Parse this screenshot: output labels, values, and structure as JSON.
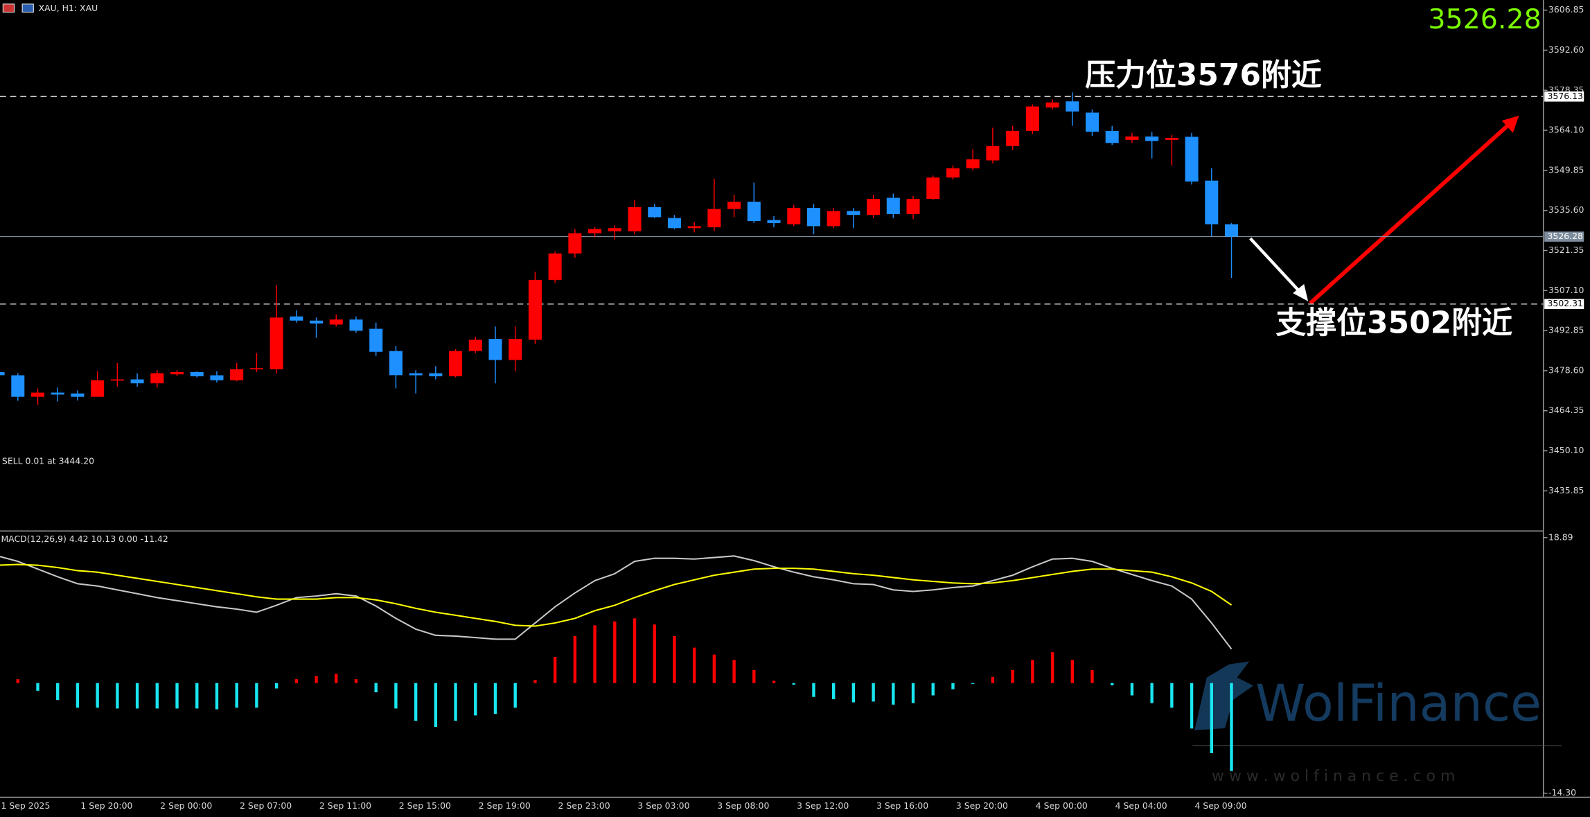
{
  "chart_data": [
    {
      "type": "candlestick",
      "title": "XAU, H1:  XAU",
      "categories": [
        "1 Sep 2025",
        null,
        null,
        null,
        "1 Sep 20:00",
        null,
        null,
        null,
        "2 Sep 00:00",
        null,
        null,
        null,
        "2 Sep 07:00",
        null,
        null,
        null,
        "2 Sep 11:00",
        null,
        null,
        null,
        "2 Sep 15:00",
        null,
        null,
        null,
        "2 Sep 19:00",
        null,
        null,
        null,
        "2 Sep 23:00",
        null,
        null,
        null,
        "3 Sep 03:00",
        null,
        null,
        null,
        "3 Sep 08:00",
        null,
        null,
        null,
        "3 Sep 12:00",
        null,
        null,
        null,
        "3 Sep 16:00",
        null,
        null,
        null,
        "3 Sep 20:00",
        null,
        null,
        null,
        "4 Sep 00:00",
        null,
        null,
        null,
        "4 Sep 04:00",
        null,
        null,
        null,
        "4 Sep 09:00",
        null,
        null
      ],
      "open": [
        3478.1,
        3476.96,
        3469.3,
        3470.8,
        3470.5,
        3469.3,
        3475.2,
        3475.5,
        3474.1,
        3477.3,
        3478.1,
        3476.96,
        3475.2,
        3479.1,
        3479.1,
        3497.9,
        3496.4,
        3495.0,
        3496.8,
        3493.5,
        3485.6,
        3477.7,
        3477.7,
        3476.6,
        3485.6,
        3489.9,
        3482.4,
        3489.6,
        3510.9,
        3520.3,
        3527.5,
        3528.2,
        3528.2,
        3536.8,
        3532.9,
        3529.3,
        3529.6,
        3536.1,
        3538.7,
        3532.2,
        3530.7,
        3536.5,
        3530.0,
        3535.4,
        3534.0,
        3540.1,
        3534.3,
        3539.7,
        3547.3,
        3550.6,
        3553.4,
        3558.5,
        3563.9,
        3572.2,
        3574.4,
        3570.4,
        3563.9,
        3560.7,
        3561.9,
        3560.7,
        3561.8,
        3546.2,
        3530.7
      ],
      "high": [
        3478.8,
        3477.7,
        3472.3,
        3472.6,
        3471.6,
        3478.4,
        3481.3,
        3477.7,
        3478.8,
        3478.8,
        3478.4,
        3478.4,
        3481.3,
        3484.9,
        3509.1,
        3500.1,
        3497.5,
        3498.6,
        3497.9,
        3495.7,
        3487.4,
        3478.8,
        3480.2,
        3486.3,
        3490.7,
        3494.3,
        3494.3,
        3513.8,
        3521.0,
        3529.0,
        3529.6,
        3530.4,
        3539.4,
        3537.9,
        3534.0,
        3531.4,
        3546.9,
        3541.2,
        3545.5,
        3533.6,
        3537.6,
        3537.9,
        3536.5,
        3536.5,
        3541.2,
        3541.6,
        3540.8,
        3548.0,
        3551.6,
        3557.4,
        3565.0,
        3565.7,
        3573.3,
        3575.1,
        3577.6,
        3571.5,
        3565.7,
        3563.2,
        3563.6,
        3562.5,
        3563.2,
        3550.6,
        3531.1
      ],
      "low": [
        3476.2,
        3467.9,
        3466.5,
        3467.6,
        3468.0,
        3469.3,
        3472.9,
        3472.9,
        3472.6,
        3476.6,
        3476.2,
        3474.4,
        3474.8,
        3478.1,
        3477.7,
        3495.7,
        3490.3,
        3494.3,
        3492.1,
        3483.8,
        3472.3,
        3470.5,
        3475.5,
        3476.2,
        3484.9,
        3474.1,
        3478.4,
        3488.1,
        3509.8,
        3518.8,
        3526.1,
        3525.3,
        3527.1,
        3532.9,
        3528.9,
        3527.8,
        3528.2,
        3533.2,
        3531.1,
        3529.6,
        3530.0,
        3527.1,
        3529.3,
        3529.3,
        3532.9,
        3532.9,
        3532.5,
        3539.4,
        3546.6,
        3549.8,
        3552.4,
        3557.1,
        3562.8,
        3571.5,
        3565.7,
        3562.1,
        3558.9,
        3559.6,
        3554.1,
        3551.6,
        3544.8,
        3526.4,
        3511.6
      ],
      "close": [
        3477.0,
        3469.3,
        3470.8,
        3470.1,
        3469.3,
        3475.2,
        3475.5,
        3474.1,
        3477.7,
        3478.1,
        3476.6,
        3475.2,
        3479.1,
        3479.5,
        3497.5,
        3496.4,
        3495.4,
        3496.8,
        3492.8,
        3485.3,
        3477.0,
        3476.96,
        3476.6,
        3485.6,
        3489.6,
        3482.4,
        3489.9,
        3510.9,
        3520.3,
        3527.5,
        3529.0,
        3529.3,
        3536.8,
        3533.2,
        3529.3,
        3530.0,
        3536.1,
        3538.7,
        3531.8,
        3531.1,
        3536.5,
        3530.0,
        3535.4,
        3534.0,
        3539.7,
        3534.3,
        3539.7,
        3547.3,
        3550.6,
        3553.8,
        3558.5,
        3563.9,
        3572.6,
        3574.0,
        3570.8,
        3563.6,
        3559.6,
        3561.9,
        3560.3,
        3561.4,
        3545.9,
        3530.7,
        3526.28
      ],
      "up_color": "#ff0000",
      "down_color": "#1e90ff",
      "ylim": [
        3422.12,
        3610.46
      ],
      "yticks": [
        3606.85,
        {
          "value": 3592.6,
          "label": "3592.60"
        },
        3578.35,
        {
          "value": 3564.1,
          "label": "3564.10"
        },
        3549.85,
        {
          "value": 3535.6,
          "label": "3535.60"
        },
        3521.35,
        {
          "value": 3507.1,
          "label": "3507.10"
        },
        3492.85,
        {
          "value": 3478.6,
          "label": "3478.60"
        },
        3464.35,
        {
          "value": 3450.1,
          "label": "3450.10"
        },
        3435.85
      ],
      "levels": [
        {
          "value": 3576.13,
          "style": "dashed"
        },
        {
          "value": 3502.31,
          "style": "dashed"
        }
      ],
      "price_line": true,
      "annotations": [
        "压力位3576附近",
        "支撑位3502附近",
        "SELL 0.01 at 3444.20"
      ]
    },
    {
      "type": "macd",
      "title": "MACD(12,26,9) 4.42 10.13 0.00 -11.42",
      "histogram": {
        "up_color": "#ff0000",
        "down_color": "#19e6f0",
        "values": [
          0.6,
          0.5,
          -1.0,
          -2.2,
          -3.2,
          -3.2,
          -3.3,
          -3.3,
          -3.3,
          -3.3,
          -3.3,
          -3.4,
          -3.2,
          -3.2,
          -0.7,
          0.5,
          0.9,
          1.2,
          0.5,
          -1.2,
          -3.3,
          -4.9,
          -5.7,
          -4.9,
          -4.2,
          -4.0,
          -3.2,
          0.4,
          3.4,
          6.1,
          7.5,
          8.0,
          8.4,
          7.6,
          6.1,
          4.6,
          3.7,
          3.0,
          1.7,
          0.3,
          -0.2,
          -1.8,
          -2.1,
          -2.5,
          -2.4,
          -2.8,
          -2.6,
          -1.6,
          -0.8,
          -0.1,
          0.8,
          1.7,
          3.0,
          4.0,
          3.0,
          1.7,
          -0.3,
          -1.6,
          -2.6,
          -3.2,
          -5.9,
          -9.1,
          -11.42
        ]
      },
      "series": [
        {
          "color": "#c8c8c8",
          "values": [
            16.5,
            15.8,
            14.8,
            13.8,
            12.9,
            12.6,
            12.1,
            11.6,
            11.1,
            10.7,
            10.3,
            9.9,
            9.6,
            9.2,
            10.1,
            11.1,
            11.3,
            11.6,
            11.3,
            10.0,
            8.4,
            7.0,
            6.2,
            6.1,
            5.9,
            5.7,
            5.7,
            7.8,
            9.9,
            11.7,
            13.3,
            14.2,
            15.8,
            16.2,
            16.2,
            16.1,
            16.3,
            16.5,
            15.9,
            15.1,
            14.4,
            13.8,
            13.4,
            12.9,
            12.8,
            12.1,
            11.9,
            12.1,
            12.4,
            12.6,
            13.3,
            14.0,
            15.1,
            16.1,
            16.2,
            15.8,
            14.9,
            14.1,
            13.3,
            12.6,
            10.9,
            7.8,
            4.42
          ]
        },
        {
          "color": "#ffff00",
          "values": [
            15.3,
            15.4,
            15.3,
            15.0,
            14.6,
            14.4,
            14.0,
            13.6,
            13.2,
            12.8,
            12.4,
            12.0,
            11.6,
            11.2,
            10.9,
            10.9,
            10.9,
            11.1,
            11.1,
            10.8,
            10.3,
            9.7,
            9.2,
            8.8,
            8.4,
            8.0,
            7.5,
            7.4,
            7.8,
            8.4,
            9.4,
            10.1,
            11.1,
            12.0,
            12.8,
            13.4,
            14.0,
            14.4,
            14.8,
            14.9,
            14.9,
            14.8,
            14.5,
            14.2,
            14.0,
            13.7,
            13.4,
            13.2,
            13.0,
            12.9,
            13.0,
            13.3,
            13.7,
            14.1,
            14.5,
            14.8,
            14.8,
            14.6,
            14.4,
            13.8,
            13.0,
            11.9,
            10.13
          ]
        }
      ],
      "ylim": [
        -14.69,
        19.55
      ],
      "yticks": [
        18.89,
        {
          "value": -14.3,
          "label": "-14.30"
        }
      ]
    }
  ],
  "watermark": {
    "brand": "WolFinance",
    "url": "w w w . w o l f i n a n c e . c o m"
  }
}
